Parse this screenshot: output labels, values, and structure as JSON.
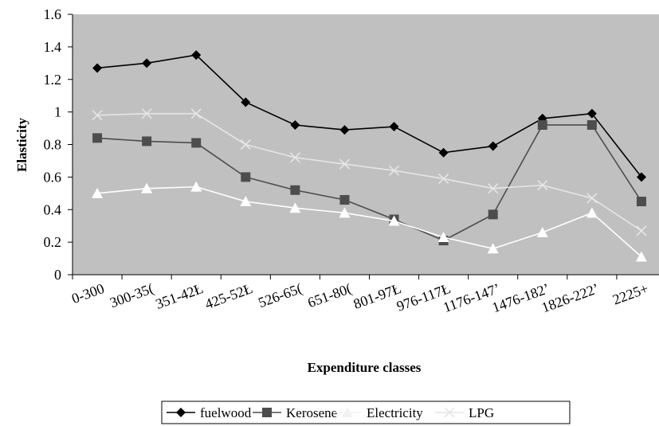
{
  "chart_data": {
    "type": "line",
    "title": "",
    "xlabel": "Expenditure classes",
    "ylabel": "Elasticity",
    "ylim": [
      0,
      1.6
    ],
    "yticks": [
      "0",
      "0.2",
      "0.4",
      "0.6",
      "0.8",
      "1",
      "1.2",
      "1.4",
      "1.6"
    ],
    "categories": [
      "0-300",
      "300-350",
      "351-425",
      "425-525",
      "526-650",
      "651-800",
      "801-975",
      "976-1175",
      "1176-1475",
      "1476-1825",
      "1826-2225",
      "2225+"
    ],
    "category_labels": [
      "0-300",
      "300-35(",
      "351-42Ł",
      "425-52Ł",
      "526-65(",
      "651-80(",
      "801-97Ł",
      "976-117Ł",
      "1176-147’",
      "1476-182’",
      "1826-222’",
      "2225+"
    ],
    "grid": false,
    "plot_background": "#c0c0c0",
    "legend_position": "bottom",
    "series": [
      {
        "name": "fuelwood",
        "color": "#000000",
        "marker": "diamond",
        "values": [
          1.27,
          1.3,
          1.35,
          1.06,
          0.92,
          0.89,
          0.91,
          0.75,
          0.79,
          0.96,
          0.99,
          0.6
        ]
      },
      {
        "name": "Kerosene",
        "color": "#4d4d4d",
        "marker": "square",
        "values": [
          0.84,
          0.82,
          0.81,
          0.6,
          0.52,
          0.46,
          0.34,
          0.21,
          0.37,
          0.92,
          0.92,
          0.45
        ]
      },
      {
        "name": "Electricity",
        "color": "#ffffff",
        "marker": "triangle",
        "values": [
          0.5,
          0.53,
          0.54,
          0.45,
          0.41,
          0.38,
          0.33,
          0.23,
          0.16,
          0.26,
          0.38,
          0.11
        ]
      },
      {
        "name": "LPG",
        "color": "#e6e6e6",
        "marker": "x",
        "values": [
          0.98,
          0.99,
          0.99,
          0.8,
          0.72,
          0.68,
          0.64,
          0.59,
          0.53,
          0.55,
          0.47,
          0.27
        ]
      }
    ]
  }
}
